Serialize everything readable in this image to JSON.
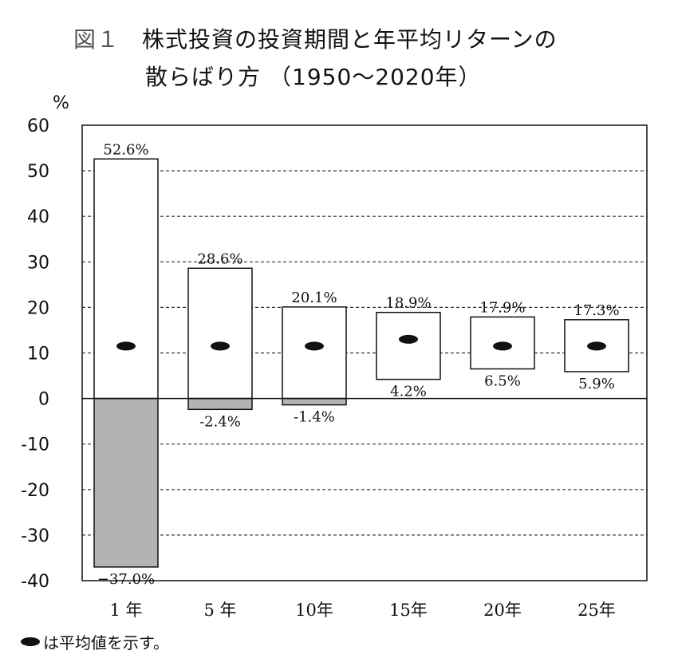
{
  "title": {
    "figure_label": "図１",
    "line1": "株式投資の投資期間と年平均リターンの",
    "line2": "散らばり方",
    "line2_sub": "（1950～2020年）"
  },
  "note": "は平均値を示す。",
  "chart_data": {
    "type": "bar",
    "y_unit": "%",
    "ylim": [
      -40,
      60
    ],
    "yticks": [
      60,
      50,
      40,
      30,
      20,
      10,
      0,
      -10,
      -20,
      -30,
      -40
    ],
    "grid": "dashed horizontal",
    "categories": [
      "1 年",
      "5 年",
      "10年",
      "15年",
      "20年",
      "25年"
    ],
    "max": [
      52.6,
      28.6,
      20.1,
      18.9,
      17.9,
      17.3
    ],
    "min": [
      -37.0,
      -2.4,
      -1.4,
      4.2,
      6.5,
      5.9
    ],
    "mean": [
      11.5,
      11.5,
      11.5,
      13.0,
      11.5,
      11.5
    ],
    "max_labels": [
      "52.6%",
      "28.6%",
      "20.1%",
      "18.9%",
      "17.9%",
      "17.3%"
    ],
    "min_labels": [
      "−37.0%",
      "-2.4%",
      "-1.4%",
      "4.2%",
      "6.5%",
      "5.9%"
    ],
    "colors": {
      "positive": "#ffffff",
      "negative": "#b3b3b3",
      "mean_marker": "#111111",
      "stroke": "#111111"
    }
  }
}
